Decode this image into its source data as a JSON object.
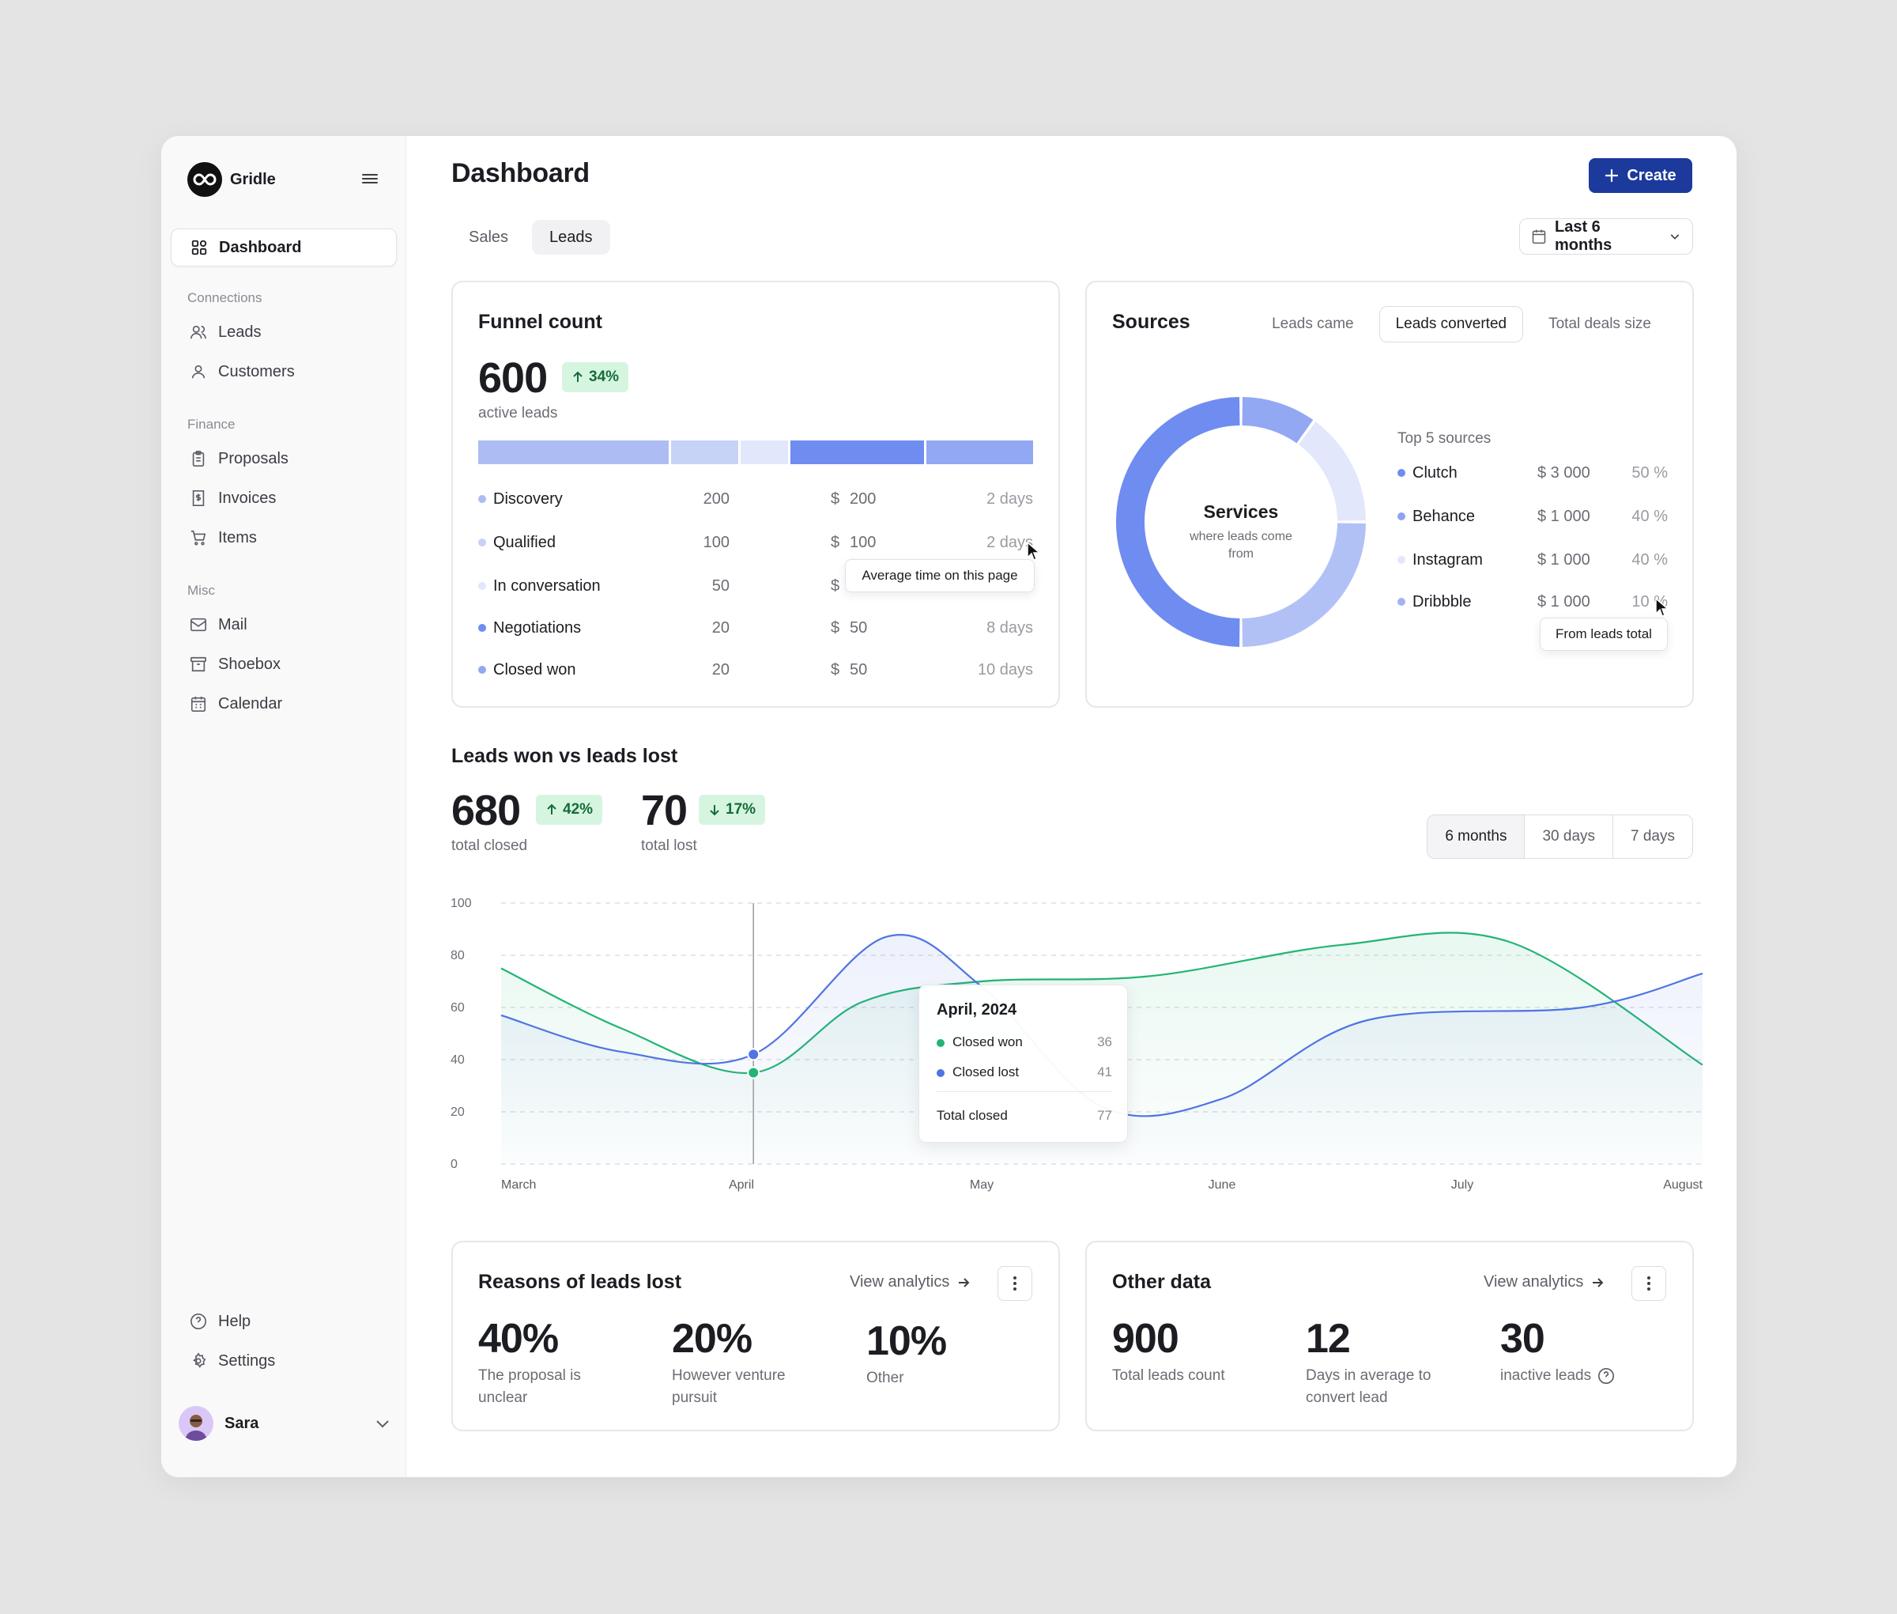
{
  "brand": {
    "name": "Gridle"
  },
  "sidebar": {
    "dashboard": "Dashboard",
    "sections": [
      "Connections",
      "Finance",
      "Misc"
    ],
    "connections": [
      {
        "label": "Leads",
        "icon": "users-icon"
      },
      {
        "label": "Customers",
        "icon": "user-icon"
      }
    ],
    "finance": [
      {
        "label": "Proposals",
        "icon": "clipboard-icon"
      },
      {
        "label": "Invoices",
        "icon": "invoice-icon"
      },
      {
        "label": "Items",
        "icon": "cart-icon"
      }
    ],
    "misc": [
      {
        "label": "Mail",
        "icon": "mail-icon"
      },
      {
        "label": "Shoebox",
        "icon": "archive-icon"
      },
      {
        "label": "Calendar",
        "icon": "calendar-icon"
      }
    ],
    "help": "Help",
    "settings": "Settings",
    "user": "Sara"
  },
  "header": {
    "title": "Dashboard",
    "create": "Create",
    "tabs": [
      "Sales",
      "Leads"
    ],
    "active_tab": "Leads",
    "period": "Last 6 months"
  },
  "funnel": {
    "title": "Funnel count",
    "total": "600",
    "change": "34%",
    "total_label": "active leads",
    "rows": [
      {
        "name": "Discovery",
        "count": "200",
        "currency": "$",
        "amount": "200",
        "days": "2 days",
        "color": "#aebcf4"
      },
      {
        "name": "Qualified",
        "count": "100",
        "currency": "$",
        "amount": "100",
        "days": "2 days",
        "color": "#c7d2f7"
      },
      {
        "name": "In conversation",
        "count": "50",
        "currency": "$",
        "amount": "",
        "days": "",
        "color": "#e2e7fb"
      },
      {
        "name": "Negotiations",
        "count": "20",
        "currency": "$",
        "amount": "50",
        "days": "8 days",
        "color": "#6f8cf0"
      },
      {
        "name": "Closed won",
        "count": "20",
        "currency": "$",
        "amount": "50",
        "days": "10 days",
        "color": "#93a8f3"
      }
    ],
    "bar_shares": [
      200,
      70,
      50,
      140,
      112
    ],
    "tooltip": "Average time on this page"
  },
  "sources": {
    "title": "Sources",
    "tabs": [
      "Leads came",
      "Leads converted",
      "Total deals size"
    ],
    "active_tab": "Leads converted",
    "donut_title": "Services",
    "donut_sub": "where leads come from",
    "donut_shares": [
      {
        "name": "Clutch",
        "value": 50,
        "color": "#6f8cf0"
      },
      {
        "name": "Behance",
        "value": 10,
        "color": "#93a8f3"
      },
      {
        "name": "Instagram",
        "value": 15,
        "color": "#e2e7fb"
      },
      {
        "name": "Dribbble",
        "value": 25,
        "color": "#b2c1f5"
      }
    ],
    "list_title": "Top 5 sources",
    "rows": [
      {
        "name": "Clutch",
        "amount": "$  3 000",
        "pct": "50 %",
        "color": "#6f8cf0"
      },
      {
        "name": "Behance",
        "amount": "$  1 000",
        "pct": "40 %",
        "color": "#8ea3f2"
      },
      {
        "name": "Instagram",
        "amount": "$  1 000",
        "pct": "40 %",
        "color": "#e2e7fb"
      },
      {
        "name": "Dribbble",
        "amount": "$  1 000",
        "pct": "10 %",
        "color": "#a3b4f4"
      }
    ],
    "tooltip": "From leads total"
  },
  "won_lost": {
    "title": "Leads won vs leads lost",
    "won": "680",
    "won_change": "42%",
    "won_label": "total closed",
    "lost": "70",
    "lost_change": "17%",
    "lost_label": "total lost",
    "ranges": [
      "6 months",
      "30 days",
      "7 days"
    ],
    "active_range": "6 months",
    "tooltip": {
      "title": "April, 2024",
      "won_label": "Closed won",
      "won_value": "36",
      "lost_label": "Closed lost",
      "lost_value": "41",
      "total_label": "Total closed",
      "total_value": "77"
    }
  },
  "chart_data": {
    "type": "line",
    "x": [
      "March",
      "April",
      "May",
      "June",
      "July",
      "August"
    ],
    "y_ticks": [
      "0",
      "20",
      "40",
      "60",
      "80",
      "100"
    ],
    "ylim": [
      0,
      100
    ],
    "grid": true,
    "series": [
      {
        "name": "Closed won",
        "color": "#22b573",
        "points": [
          [
            0,
            75
          ],
          [
            0.5,
            52
          ],
          [
            1.05,
            35
          ],
          [
            1.5,
            62
          ],
          [
            2,
            70
          ],
          [
            2.7,
            72
          ],
          [
            3.5,
            84
          ],
          [
            4.2,
            85
          ],
          [
            5,
            38
          ]
        ]
      },
      {
        "name": "Closed lost",
        "color": "#4f74e3",
        "points": [
          [
            0,
            57
          ],
          [
            0.5,
            43
          ],
          [
            1.05,
            42
          ],
          [
            1.6,
            87
          ],
          [
            2,
            68
          ],
          [
            2.5,
            22
          ],
          [
            3,
            25
          ],
          [
            3.6,
            55
          ],
          [
            4.5,
            60
          ],
          [
            5,
            73
          ]
        ]
      }
    ]
  },
  "reasons": {
    "title": "Reasons of leads lost",
    "link": "View analytics",
    "stats": [
      {
        "value": "40%",
        "label": "The proposal is unclear"
      },
      {
        "value": "20%",
        "label": "However venture pursuit"
      },
      {
        "value": "10%",
        "label": "Other"
      }
    ]
  },
  "other": {
    "title": "Other data",
    "link": "View analytics",
    "stats": [
      {
        "value": "900",
        "label": "Total leads count"
      },
      {
        "value": "12",
        "label": "Days in average to convert lead"
      },
      {
        "value": "30",
        "label": "inactive leads"
      }
    ]
  }
}
